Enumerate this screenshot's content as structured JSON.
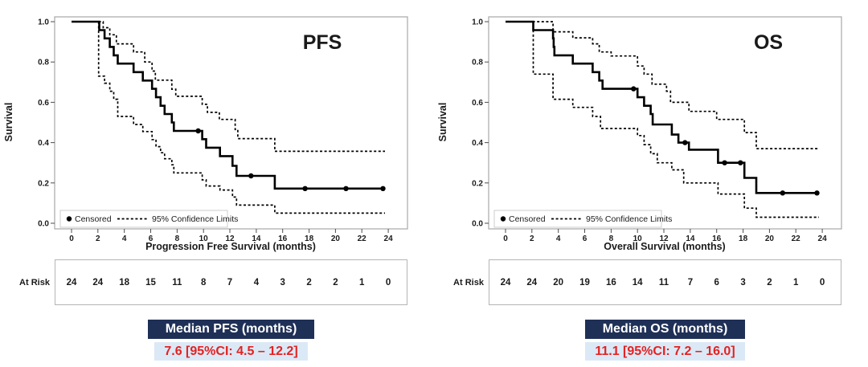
{
  "figure": {
    "background": "#ffffff",
    "colors": {
      "curve": "#000000",
      "frame": "#a8a8a8",
      "tick": "#4d4d4d",
      "header_bg": "#1f3057",
      "header_text": "#ffffff",
      "value_bg": "#dbe9f6",
      "value_text": "#e32222",
      "legend_border": "#cccccc"
    }
  },
  "chart_data": [
    {
      "id": "pfs",
      "type": "line",
      "title": "PFS",
      "xlabel": "Progression Free Survival (months)",
      "ylabel": "Survival",
      "xlim": [
        0,
        24
      ],
      "ylim": [
        0.0,
        1.0
      ],
      "grid": false,
      "x_ticks": [
        0,
        2,
        4,
        6,
        8,
        10,
        12,
        14,
        16,
        18,
        20,
        22,
        24
      ],
      "y_ticks": [
        "0.0",
        "0.2",
        "0.4",
        "0.6",
        "0.8",
        "1.0"
      ],
      "legend": {
        "position": "bottom-left",
        "censored_label": "Censored",
        "ci_label": "95% Confidence Limits"
      },
      "end_time": 23.75,
      "survival_steps": [
        [
          0,
          1.0
        ],
        [
          2.1,
          0.958
        ],
        [
          2.5,
          0.917
        ],
        [
          2.9,
          0.875
        ],
        [
          3.2,
          0.833
        ],
        [
          3.5,
          0.792
        ],
        [
          4.7,
          0.75
        ],
        [
          5.4,
          0.708
        ],
        [
          6.1,
          0.667
        ],
        [
          6.4,
          0.625
        ],
        [
          6.75,
          0.583
        ],
        [
          7.05,
          0.542
        ],
        [
          7.6,
          0.5
        ],
        [
          7.75,
          0.458
        ],
        [
          9.9,
          0.417
        ],
        [
          10.2,
          0.375
        ],
        [
          11.25,
          0.333
        ],
        [
          12.2,
          0.285
        ],
        [
          12.5,
          0.235
        ],
        [
          15.4,
          0.172
        ]
      ],
      "upper_ci_steps": [
        [
          0,
          1.0
        ],
        [
          2.4,
          0.97
        ],
        [
          2.9,
          0.935
        ],
        [
          3.4,
          0.89
        ],
        [
          4.7,
          0.85
        ],
        [
          5.55,
          0.8
        ],
        [
          6.1,
          0.755
        ],
        [
          6.35,
          0.71
        ],
        [
          7.6,
          0.665
        ],
        [
          7.9,
          0.63
        ],
        [
          9.9,
          0.59
        ],
        [
          10.3,
          0.55
        ],
        [
          11.2,
          0.515
        ],
        [
          12.4,
          0.465
        ],
        [
          12.6,
          0.42
        ],
        [
          15.4,
          0.357
        ]
      ],
      "lower_ci_steps": [
        [
          0,
          1.0
        ],
        [
          2.05,
          0.73
        ],
        [
          2.5,
          0.695
        ],
        [
          2.9,
          0.655
        ],
        [
          3.2,
          0.615
        ],
        [
          3.5,
          0.53
        ],
        [
          4.7,
          0.49
        ],
        [
          5.4,
          0.455
        ],
        [
          6.1,
          0.415
        ],
        [
          6.4,
          0.38
        ],
        [
          6.75,
          0.35
        ],
        [
          7.05,
          0.32
        ],
        [
          7.6,
          0.29
        ],
        [
          7.75,
          0.25
        ],
        [
          9.9,
          0.215
        ],
        [
          10.2,
          0.185
        ],
        [
          11.25,
          0.165
        ],
        [
          12.2,
          0.13
        ],
        [
          12.5,
          0.09
        ],
        [
          15.4,
          0.05
        ]
      ],
      "censored_points": [
        [
          9.6,
          0.458
        ],
        [
          13.6,
          0.235
        ],
        [
          17.7,
          0.172
        ],
        [
          20.8,
          0.172
        ],
        [
          23.6,
          0.172
        ]
      ],
      "at_risk": {
        "label": "At Risk",
        "times": [
          0,
          2,
          4,
          6,
          8,
          10,
          12,
          14,
          16,
          18,
          20,
          22,
          24
        ],
        "counts": [
          24,
          24,
          18,
          15,
          11,
          8,
          7,
          4,
          3,
          2,
          2,
          1,
          0
        ]
      },
      "median": {
        "header": "Median PFS (months)",
        "value": "7.6 [95%CI: 4.5 – 12.2]"
      }
    },
    {
      "id": "os",
      "type": "line",
      "title": "OS",
      "xlabel": "Overall Survival (months)",
      "ylabel": "Survival",
      "xlim": [
        0,
        24
      ],
      "ylim": [
        0.0,
        1.0
      ],
      "grid": false,
      "x_ticks": [
        0,
        2,
        4,
        6,
        8,
        10,
        12,
        14,
        16,
        18,
        20,
        22,
        24
      ],
      "y_ticks": [
        "0.0",
        "0.2",
        "0.4",
        "0.6",
        "0.8",
        "1.0"
      ],
      "legend": {
        "position": "bottom-left",
        "censored_label": "Censored",
        "ci_label": "95% Confidence Limits"
      },
      "end_time": 23.75,
      "survival_steps": [
        [
          0,
          1.0
        ],
        [
          2.1,
          0.958
        ],
        [
          3.6,
          0.917
        ],
        [
          3.65,
          0.875
        ],
        [
          3.7,
          0.833
        ],
        [
          5.1,
          0.792
        ],
        [
          6.6,
          0.75
        ],
        [
          7.1,
          0.708
        ],
        [
          7.35,
          0.667
        ],
        [
          10.0,
          0.625
        ],
        [
          10.5,
          0.583
        ],
        [
          11.0,
          0.542
        ],
        [
          11.15,
          0.49
        ],
        [
          12.6,
          0.44
        ],
        [
          13.1,
          0.4
        ],
        [
          13.9,
          0.365
        ],
        [
          16.1,
          0.3
        ],
        [
          18.1,
          0.225
        ],
        [
          19.0,
          0.15
        ]
      ],
      "upper_ci_steps": [
        [
          0,
          1.0
        ],
        [
          3.6,
          0.95
        ],
        [
          5.1,
          0.92
        ],
        [
          6.6,
          0.89
        ],
        [
          7.1,
          0.85
        ],
        [
          8.0,
          0.83
        ],
        [
          10.0,
          0.78
        ],
        [
          10.5,
          0.74
        ],
        [
          11.1,
          0.69
        ],
        [
          12.2,
          0.655
        ],
        [
          12.5,
          0.6
        ],
        [
          13.9,
          0.555
        ],
        [
          16.0,
          0.515
        ],
        [
          18.1,
          0.45
        ],
        [
          19.0,
          0.37
        ]
      ],
      "lower_ci_steps": [
        [
          0,
          1.0
        ],
        [
          2.1,
          0.74
        ],
        [
          3.6,
          0.615
        ],
        [
          5.1,
          0.575
        ],
        [
          6.6,
          0.53
        ],
        [
          7.2,
          0.47
        ],
        [
          10.0,
          0.435
        ],
        [
          10.5,
          0.39
        ],
        [
          11.0,
          0.345
        ],
        [
          11.5,
          0.3
        ],
        [
          12.6,
          0.265
        ],
        [
          13.5,
          0.2
        ],
        [
          16.1,
          0.145
        ],
        [
          18.1,
          0.075
        ],
        [
          19.0,
          0.03
        ]
      ],
      "censored_points": [
        [
          9.7,
          0.667
        ],
        [
          13.6,
          0.4
        ],
        [
          16.6,
          0.3
        ],
        [
          17.8,
          0.3
        ],
        [
          21.0,
          0.15
        ],
        [
          23.6,
          0.15
        ]
      ],
      "at_risk": {
        "label": "At Risk",
        "times": [
          0,
          2,
          4,
          6,
          8,
          10,
          12,
          14,
          16,
          18,
          20,
          22,
          24
        ],
        "counts": [
          24,
          24,
          20,
          19,
          16,
          14,
          11,
          7,
          6,
          3,
          2,
          1,
          0
        ]
      },
      "median": {
        "header": "Median OS (months)",
        "value": "11.1 [95%CI: 7.2 – 16.0]"
      }
    }
  ]
}
